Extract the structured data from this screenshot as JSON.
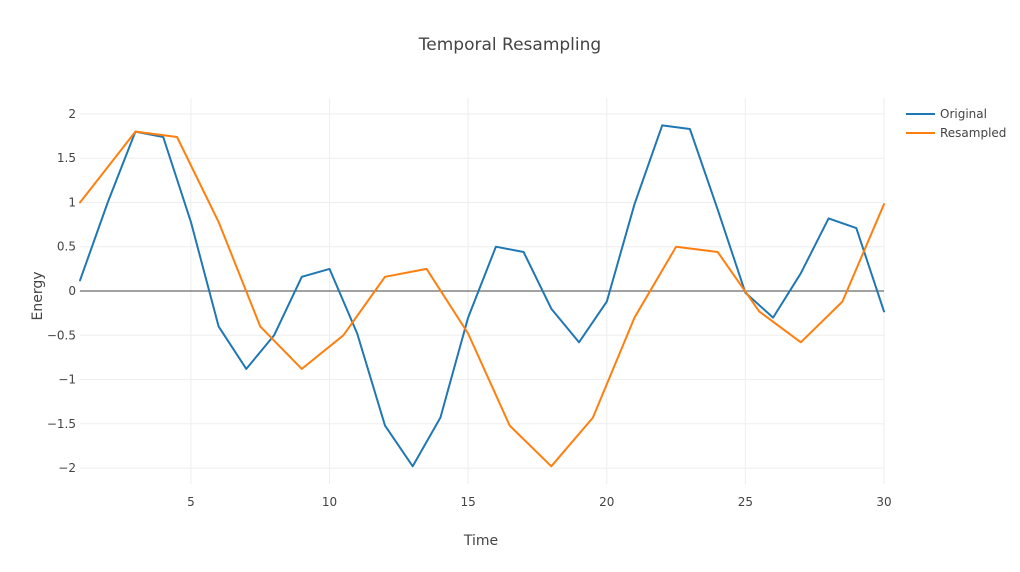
{
  "chart_data": {
    "type": "line",
    "title": "Temporal Resampling",
    "xlabel": "Time",
    "ylabel": "Energy",
    "xlim": [
      1,
      30
    ],
    "ylim": [
      -2.18,
      2.18
    ],
    "x_ticks": [
      5,
      10,
      15,
      20,
      25,
      30
    ],
    "y_ticks": [
      -2,
      -1.5,
      -1,
      -0.5,
      0,
      0.5,
      1,
      1.5,
      2
    ],
    "y_tick_labels": [
      "−2",
      "−1.5",
      "−1",
      "−0.5",
      "0",
      "0.5",
      "1",
      "1.5",
      "2"
    ],
    "grid": true,
    "legend_position": "top-right",
    "series": [
      {
        "name": "Original",
        "color": "#1f77b4",
        "x": [
          1,
          2,
          3,
          4,
          5,
          6,
          7,
          8,
          9,
          10,
          11,
          12,
          13,
          14,
          15,
          16,
          17,
          18,
          19,
          20,
          21,
          22,
          23,
          24,
          25,
          26,
          27,
          28,
          29,
          30
        ],
        "y": [
          0.12,
          1.0,
          1.8,
          1.74,
          0.78,
          -0.4,
          -0.88,
          -0.5,
          0.16,
          0.25,
          -0.48,
          -1.52,
          -1.98,
          -1.43,
          -0.3,
          0.5,
          0.44,
          -0.2,
          -0.58,
          -0.12,
          0.98,
          1.87,
          1.83,
          0.92,
          -0.02,
          -0.3,
          0.2,
          0.82,
          0.71,
          -0.23
        ]
      },
      {
        "name": "Resampled",
        "color": "#ff7f0e",
        "x": [
          1,
          3,
          4.5,
          6,
          7.5,
          9,
          10.5,
          12,
          13.5,
          15,
          16.5,
          18,
          19.5,
          21,
          22.5,
          24,
          25.5,
          27,
          28.5,
          30
        ],
        "y": [
          1.0,
          1.8,
          1.74,
          0.78,
          -0.4,
          -0.88,
          -0.5,
          0.16,
          0.25,
          -0.48,
          -1.52,
          -1.98,
          -1.43,
          -0.3,
          0.5,
          0.44,
          -0.23,
          -0.58,
          -0.12,
          0.98
        ]
      }
    ]
  }
}
